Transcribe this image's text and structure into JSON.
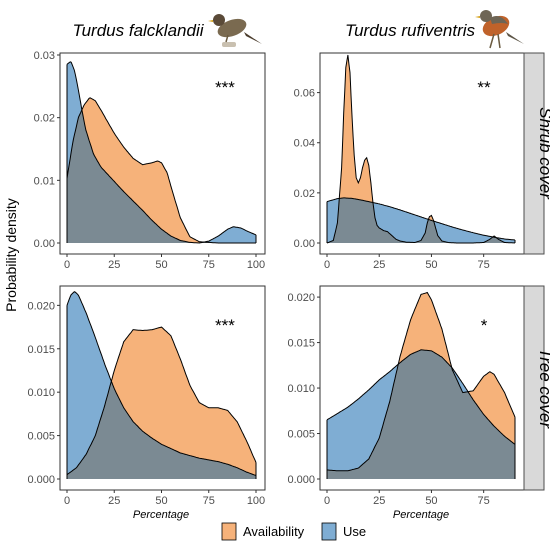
{
  "colors": {
    "availability": "#f6b27a",
    "use": "#7fadd3",
    "overlap": "#7b8a93",
    "strip_bg": "#d9d9d9"
  },
  "col_titles": [
    "Turdus falcklandii",
    "Turdus rufiventris"
  ],
  "strip_labels": [
    "Shrub cover",
    "Tree cover"
  ],
  "y_label": "Probability density",
  "x_label": "Percentage",
  "legend": {
    "availability": "Availability",
    "use": "Use"
  },
  "chart_data": [
    {
      "type": "area",
      "species": "Turdus falcklandii",
      "cover": "Shrub cover",
      "significance": "***",
      "xlim": [
        0,
        100
      ],
      "ylim": [
        0,
        0.03
      ],
      "xticks": [
        "0",
        "25",
        "50",
        "75",
        "100"
      ],
      "yticks": [
        "0.00",
        "0.01",
        "0.02",
        "0.03"
      ],
      "xtick_values": [
        0,
        25,
        50,
        75,
        100
      ],
      "ytick_values": [
        0,
        0.01,
        0.02,
        0.03
      ],
      "series": [
        {
          "name": "Availability",
          "x": [
            0,
            3,
            6,
            9,
            12,
            15,
            18,
            21,
            25,
            30,
            35,
            40,
            45,
            48,
            50,
            53,
            56,
            60,
            65,
            70,
            75,
            80,
            85,
            90,
            95,
            100
          ],
          "y": [
            0.0103,
            0.016,
            0.02,
            0.022,
            0.0232,
            0.0227,
            0.0212,
            0.0196,
            0.0175,
            0.0153,
            0.0135,
            0.0125,
            0.0128,
            0.0131,
            0.0128,
            0.0112,
            0.008,
            0.004,
            0.001,
            0.0002,
            0.0001,
            0,
            0,
            0,
            0,
            0
          ]
        },
        {
          "name": "Use",
          "x": [
            0,
            2,
            4,
            6,
            8,
            10,
            14,
            18,
            22,
            26,
            30,
            35,
            40,
            45,
            50,
            55,
            60,
            65,
            70,
            75,
            80,
            85,
            88,
            92,
            96,
            100
          ],
          "y": [
            0.0285,
            0.029,
            0.0275,
            0.0245,
            0.021,
            0.018,
            0.0142,
            0.0121,
            0.0108,
            0.0095,
            0.0082,
            0.0067,
            0.0052,
            0.0036,
            0.0022,
            0.0011,
            0.0004,
            0.0001,
            0,
            0.0003,
            0.0011,
            0.0022,
            0.0026,
            0.0024,
            0.0018,
            0.0013
          ]
        }
      ]
    },
    {
      "type": "area",
      "species": "Turdus rufiventris",
      "cover": "Shrub cover",
      "significance": "**",
      "xlim": [
        0,
        90
      ],
      "ylim": [
        0,
        0.075
      ],
      "xticks": [
        "0",
        "25",
        "50",
        "75"
      ],
      "yticks": [
        "0.00",
        "0.02",
        "0.04",
        "0.06"
      ],
      "xtick_values": [
        0,
        25,
        50,
        75
      ],
      "ytick_values": [
        0,
        0.02,
        0.04,
        0.06
      ],
      "series": [
        {
          "name": "Availability",
          "x": [
            0,
            3,
            5,
            7,
            8,
            9,
            10,
            11,
            12,
            13,
            14,
            15,
            16,
            17,
            18,
            19,
            20,
            21,
            22,
            23,
            24,
            25,
            27,
            29,
            31,
            33,
            35,
            38,
            42,
            45,
            47,
            48,
            49,
            50,
            51,
            52,
            53,
            55,
            58,
            62,
            70,
            75,
            78,
            80,
            82,
            85,
            90
          ],
          "y": [
            0,
            0.001,
            0.008,
            0.03,
            0.052,
            0.07,
            0.075,
            0.068,
            0.05,
            0.035,
            0.026,
            0.024,
            0.026,
            0.03,
            0.033,
            0.034,
            0.031,
            0.024,
            0.016,
            0.01,
            0.007,
            0.006,
            0.005,
            0.0045,
            0.003,
            0.0015,
            0.0008,
            0.0003,
            0.0002,
            0.001,
            0.004,
            0.008,
            0.0105,
            0.011,
            0.009,
            0.006,
            0.003,
            0.0008,
            0.0002,
            0,
            0,
            0.0002,
            0.0015,
            0.0028,
            0.0015,
            0.0002,
            0
          ]
        },
        {
          "name": "Use",
          "x": [
            0,
            5,
            8,
            12,
            16,
            20,
            25,
            30,
            35,
            40,
            45,
            50,
            55,
            60,
            65,
            70,
            75,
            80,
            85,
            90
          ],
          "y": [
            0.0165,
            0.0177,
            0.018,
            0.0178,
            0.0172,
            0.0165,
            0.0156,
            0.0145,
            0.0132,
            0.0118,
            0.0104,
            0.009,
            0.0077,
            0.0064,
            0.0052,
            0.0041,
            0.0031,
            0.0023,
            0.0016,
            0.0012
          ]
        }
      ]
    },
    {
      "type": "area",
      "species": "Turdus falcklandii",
      "cover": "Tree cover",
      "significance": "***",
      "xlim": [
        0,
        100
      ],
      "ylim": [
        0,
        0.022
      ],
      "xticks": [
        "0",
        "25",
        "50",
        "75",
        "100"
      ],
      "yticks": [
        "0.000",
        "0.005",
        "0.010",
        "0.015",
        "0.020"
      ],
      "xtick_values": [
        0,
        25,
        50,
        75,
        100
      ],
      "ytick_values": [
        0,
        0.005,
        0.01,
        0.015,
        0.02
      ],
      "series": [
        {
          "name": "Availability",
          "x": [
            0,
            5,
            10,
            15,
            20,
            25,
            30,
            35,
            40,
            45,
            50,
            55,
            60,
            65,
            70,
            75,
            80,
            85,
            90,
            95,
            100
          ],
          "y": [
            0.0005,
            0.0013,
            0.0028,
            0.005,
            0.0085,
            0.0125,
            0.0158,
            0.0172,
            0.0171,
            0.0172,
            0.0175,
            0.0165,
            0.0138,
            0.0108,
            0.0088,
            0.0082,
            0.0082,
            0.0079,
            0.0066,
            0.0044,
            0.0019
          ]
        },
        {
          "name": "Use",
          "x": [
            0,
            2,
            4,
            6,
            10,
            15,
            20,
            25,
            30,
            35,
            40,
            45,
            50,
            55,
            60,
            65,
            70,
            75,
            80,
            85,
            90,
            95,
            100
          ],
          "y": [
            0.02,
            0.0212,
            0.0216,
            0.0212,
            0.0192,
            0.0163,
            0.0132,
            0.0104,
            0.0082,
            0.0066,
            0.0055,
            0.0047,
            0.004,
            0.0035,
            0.003,
            0.0027,
            0.0024,
            0.0022,
            0.002,
            0.0017,
            0.0013,
            0.0008,
            0.0004
          ]
        }
      ]
    },
    {
      "type": "area",
      "species": "Turdus rufiventris",
      "cover": "Tree cover",
      "significance": "*",
      "xlim": [
        0,
        90
      ],
      "ylim": [
        0,
        0.021
      ],
      "xticks": [
        "0",
        "25",
        "50",
        "75"
      ],
      "yticks": [
        "0.000",
        "0.005",
        "0.010",
        "0.015",
        "0.020"
      ],
      "xtick_values": [
        0,
        25,
        50,
        75
      ],
      "ytick_values": [
        0,
        0.005,
        0.01,
        0.015,
        0.02
      ],
      "series": [
        {
          "name": "Availability",
          "x": [
            0,
            5,
            10,
            15,
            20,
            25,
            30,
            35,
            40,
            45,
            48,
            50,
            55,
            60,
            65,
            70,
            75,
            78,
            80,
            85,
            90
          ],
          "y": [
            0.001,
            0.0009,
            0.0009,
            0.0012,
            0.0022,
            0.0045,
            0.0085,
            0.0135,
            0.0175,
            0.0203,
            0.0205,
            0.0197,
            0.0165,
            0.012,
            0.0095,
            0.0097,
            0.0113,
            0.0118,
            0.0115,
            0.0095,
            0.0068
          ]
        },
        {
          "name": "Use",
          "x": [
            0,
            5,
            10,
            15,
            20,
            25,
            30,
            35,
            40,
            45,
            50,
            55,
            60,
            65,
            70,
            75,
            80,
            85,
            90
          ],
          "y": [
            0.0065,
            0.0072,
            0.0079,
            0.0088,
            0.0098,
            0.0109,
            0.0118,
            0.0128,
            0.0137,
            0.0142,
            0.0141,
            0.0134,
            0.0122,
            0.0105,
            0.0087,
            0.0071,
            0.0058,
            0.0047,
            0.0038
          ]
        }
      ]
    }
  ]
}
